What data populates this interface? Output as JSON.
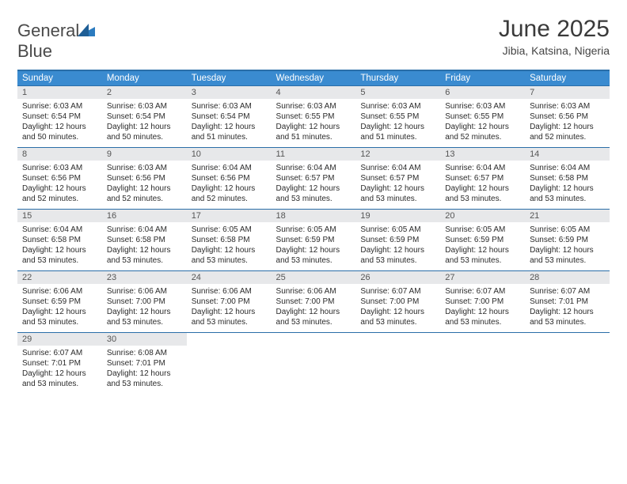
{
  "logo": {
    "word1": "General",
    "word2": "Blue"
  },
  "title": "June 2025",
  "location": "Jibia, Katsina, Nigeria",
  "colors": {
    "header_bg": "#3a8bd0",
    "header_text": "#ffffff",
    "rule": "#2a6ea8",
    "daynum_bg": "#e7e8ea",
    "body_text": "#2b2b2b",
    "logo_gray": "#4a4a4a",
    "logo_blue": "#2b7bbf"
  },
  "days_of_week": [
    "Sunday",
    "Monday",
    "Tuesday",
    "Wednesday",
    "Thursday",
    "Friday",
    "Saturday"
  ],
  "weeks": [
    [
      {
        "n": "1",
        "sr": "Sunrise: 6:03 AM",
        "ss": "Sunset: 6:54 PM",
        "d1": "Daylight: 12 hours",
        "d2": "and 50 minutes."
      },
      {
        "n": "2",
        "sr": "Sunrise: 6:03 AM",
        "ss": "Sunset: 6:54 PM",
        "d1": "Daylight: 12 hours",
        "d2": "and 50 minutes."
      },
      {
        "n": "3",
        "sr": "Sunrise: 6:03 AM",
        "ss": "Sunset: 6:54 PM",
        "d1": "Daylight: 12 hours",
        "d2": "and 51 minutes."
      },
      {
        "n": "4",
        "sr": "Sunrise: 6:03 AM",
        "ss": "Sunset: 6:55 PM",
        "d1": "Daylight: 12 hours",
        "d2": "and 51 minutes."
      },
      {
        "n": "5",
        "sr": "Sunrise: 6:03 AM",
        "ss": "Sunset: 6:55 PM",
        "d1": "Daylight: 12 hours",
        "d2": "and 51 minutes."
      },
      {
        "n": "6",
        "sr": "Sunrise: 6:03 AM",
        "ss": "Sunset: 6:55 PM",
        "d1": "Daylight: 12 hours",
        "d2": "and 52 minutes."
      },
      {
        "n": "7",
        "sr": "Sunrise: 6:03 AM",
        "ss": "Sunset: 6:56 PM",
        "d1": "Daylight: 12 hours",
        "d2": "and 52 minutes."
      }
    ],
    [
      {
        "n": "8",
        "sr": "Sunrise: 6:03 AM",
        "ss": "Sunset: 6:56 PM",
        "d1": "Daylight: 12 hours",
        "d2": "and 52 minutes."
      },
      {
        "n": "9",
        "sr": "Sunrise: 6:03 AM",
        "ss": "Sunset: 6:56 PM",
        "d1": "Daylight: 12 hours",
        "d2": "and 52 minutes."
      },
      {
        "n": "10",
        "sr": "Sunrise: 6:04 AM",
        "ss": "Sunset: 6:56 PM",
        "d1": "Daylight: 12 hours",
        "d2": "and 52 minutes."
      },
      {
        "n": "11",
        "sr": "Sunrise: 6:04 AM",
        "ss": "Sunset: 6:57 PM",
        "d1": "Daylight: 12 hours",
        "d2": "and 53 minutes."
      },
      {
        "n": "12",
        "sr": "Sunrise: 6:04 AM",
        "ss": "Sunset: 6:57 PM",
        "d1": "Daylight: 12 hours",
        "d2": "and 53 minutes."
      },
      {
        "n": "13",
        "sr": "Sunrise: 6:04 AM",
        "ss": "Sunset: 6:57 PM",
        "d1": "Daylight: 12 hours",
        "d2": "and 53 minutes."
      },
      {
        "n": "14",
        "sr": "Sunrise: 6:04 AM",
        "ss": "Sunset: 6:58 PM",
        "d1": "Daylight: 12 hours",
        "d2": "and 53 minutes."
      }
    ],
    [
      {
        "n": "15",
        "sr": "Sunrise: 6:04 AM",
        "ss": "Sunset: 6:58 PM",
        "d1": "Daylight: 12 hours",
        "d2": "and 53 minutes."
      },
      {
        "n": "16",
        "sr": "Sunrise: 6:04 AM",
        "ss": "Sunset: 6:58 PM",
        "d1": "Daylight: 12 hours",
        "d2": "and 53 minutes."
      },
      {
        "n": "17",
        "sr": "Sunrise: 6:05 AM",
        "ss": "Sunset: 6:58 PM",
        "d1": "Daylight: 12 hours",
        "d2": "and 53 minutes."
      },
      {
        "n": "18",
        "sr": "Sunrise: 6:05 AM",
        "ss": "Sunset: 6:59 PM",
        "d1": "Daylight: 12 hours",
        "d2": "and 53 minutes."
      },
      {
        "n": "19",
        "sr": "Sunrise: 6:05 AM",
        "ss": "Sunset: 6:59 PM",
        "d1": "Daylight: 12 hours",
        "d2": "and 53 minutes."
      },
      {
        "n": "20",
        "sr": "Sunrise: 6:05 AM",
        "ss": "Sunset: 6:59 PM",
        "d1": "Daylight: 12 hours",
        "d2": "and 53 minutes."
      },
      {
        "n": "21",
        "sr": "Sunrise: 6:05 AM",
        "ss": "Sunset: 6:59 PM",
        "d1": "Daylight: 12 hours",
        "d2": "and 53 minutes."
      }
    ],
    [
      {
        "n": "22",
        "sr": "Sunrise: 6:06 AM",
        "ss": "Sunset: 6:59 PM",
        "d1": "Daylight: 12 hours",
        "d2": "and 53 minutes."
      },
      {
        "n": "23",
        "sr": "Sunrise: 6:06 AM",
        "ss": "Sunset: 7:00 PM",
        "d1": "Daylight: 12 hours",
        "d2": "and 53 minutes."
      },
      {
        "n": "24",
        "sr": "Sunrise: 6:06 AM",
        "ss": "Sunset: 7:00 PM",
        "d1": "Daylight: 12 hours",
        "d2": "and 53 minutes."
      },
      {
        "n": "25",
        "sr": "Sunrise: 6:06 AM",
        "ss": "Sunset: 7:00 PM",
        "d1": "Daylight: 12 hours",
        "d2": "and 53 minutes."
      },
      {
        "n": "26",
        "sr": "Sunrise: 6:07 AM",
        "ss": "Sunset: 7:00 PM",
        "d1": "Daylight: 12 hours",
        "d2": "and 53 minutes."
      },
      {
        "n": "27",
        "sr": "Sunrise: 6:07 AM",
        "ss": "Sunset: 7:00 PM",
        "d1": "Daylight: 12 hours",
        "d2": "and 53 minutes."
      },
      {
        "n": "28",
        "sr": "Sunrise: 6:07 AM",
        "ss": "Sunset: 7:01 PM",
        "d1": "Daylight: 12 hours",
        "d2": "and 53 minutes."
      }
    ],
    [
      {
        "n": "29",
        "sr": "Sunrise: 6:07 AM",
        "ss": "Sunset: 7:01 PM",
        "d1": "Daylight: 12 hours",
        "d2": "and 53 minutes."
      },
      {
        "n": "30",
        "sr": "Sunrise: 6:08 AM",
        "ss": "Sunset: 7:01 PM",
        "d1": "Daylight: 12 hours",
        "d2": "and 53 minutes."
      },
      null,
      null,
      null,
      null,
      null
    ]
  ]
}
